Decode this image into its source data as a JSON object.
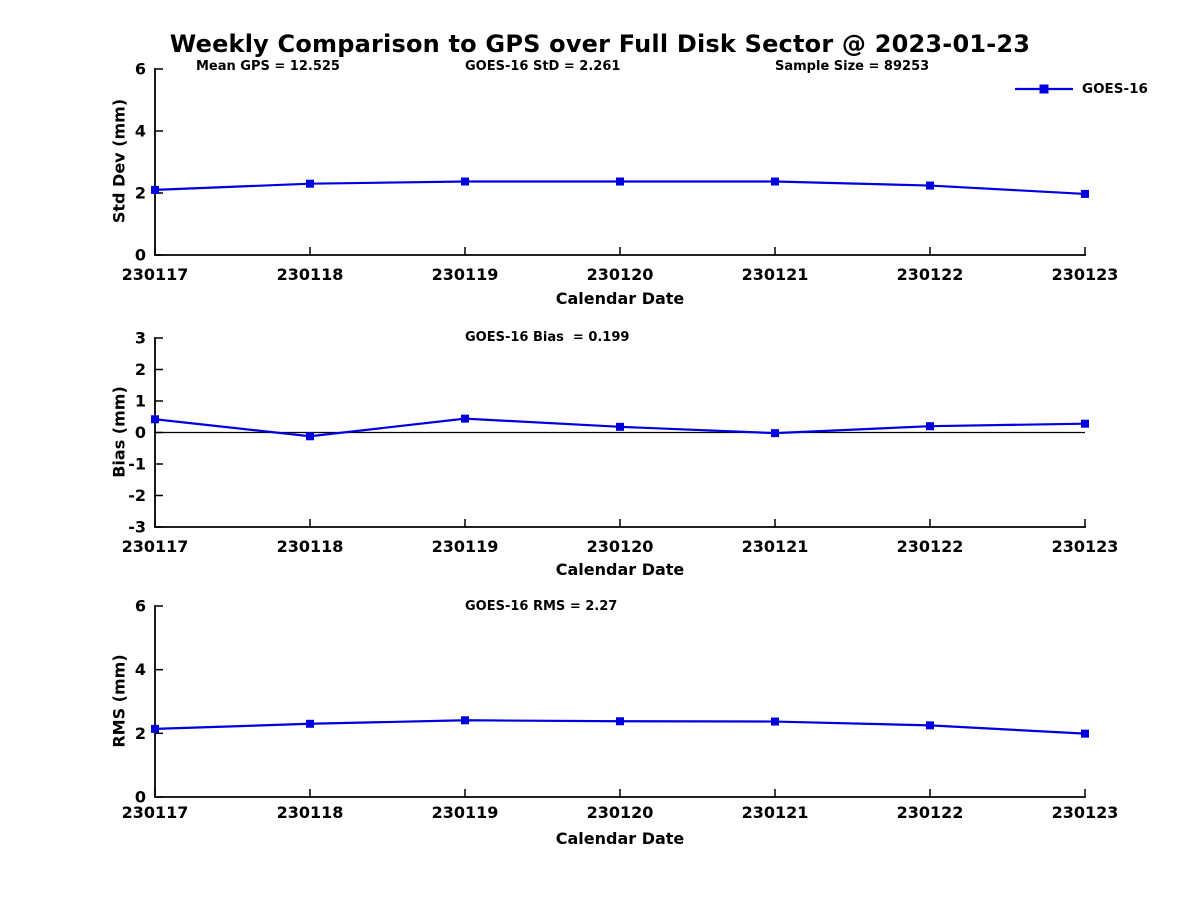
{
  "figure": {
    "title": "Weekly Comparison to GPS over Full Disk Sector @ 2023-01-23",
    "background_color": "#ffffff",
    "text_color": "#000000"
  },
  "legend": {
    "label": "GOES-16",
    "line_color": "#0000DE",
    "marker": "filled-square",
    "position": "top-right",
    "border": "none"
  },
  "chart_data": [
    {
      "type": "line",
      "title": "",
      "xlabel": "Calendar Date",
      "ylabel": "Std Dev (mm)",
      "categories": [
        "230117",
        "230118",
        "230119",
        "230120",
        "230121",
        "230122",
        "230123"
      ],
      "series": [
        {
          "name": "GOES-16",
          "color": "#0000DE",
          "marker": "square",
          "values": [
            2.1,
            2.3,
            2.37,
            2.37,
            2.37,
            2.24,
            1.97
          ]
        }
      ],
      "ylim": [
        0,
        6
      ],
      "yticks": [
        0,
        2,
        4,
        6
      ],
      "grid": false,
      "zero_line": false,
      "annotations": [
        "Mean GPS = 12.525",
        "GOES-16 StD = 2.261",
        "Sample Size = 89253"
      ]
    },
    {
      "type": "line",
      "title": "",
      "xlabel": "Calendar Date",
      "ylabel": "Bias (mm)",
      "categories": [
        "230117",
        "230118",
        "230119",
        "230120",
        "230121",
        "230122",
        "230123"
      ],
      "series": [
        {
          "name": "GOES-16",
          "color": "#0000DE",
          "marker": "square",
          "values": [
            0.42,
            -0.12,
            0.44,
            0.18,
            -0.02,
            0.2,
            0.28
          ]
        }
      ],
      "ylim": [
        -3,
        3
      ],
      "yticks": [
        3,
        2,
        1,
        0,
        -1,
        -2,
        -3
      ],
      "grid": false,
      "zero_line": true,
      "annotations": [
        "GOES-16 Bias  = 0.199"
      ]
    },
    {
      "type": "line",
      "title": "",
      "xlabel": "Calendar Date",
      "ylabel": "RMS (mm)",
      "categories": [
        "230117",
        "230118",
        "230119",
        "230120",
        "230121",
        "230122",
        "230123"
      ],
      "series": [
        {
          "name": "GOES-16",
          "color": "#0000DE",
          "marker": "square",
          "values": [
            2.14,
            2.3,
            2.41,
            2.38,
            2.37,
            2.25,
            1.99
          ]
        }
      ],
      "ylim": [
        0,
        6
      ],
      "yticks": [
        0,
        2,
        4,
        6
      ],
      "grid": false,
      "zero_line": false,
      "annotations": [
        "GOES-16 RMS = 2.27"
      ]
    }
  ]
}
